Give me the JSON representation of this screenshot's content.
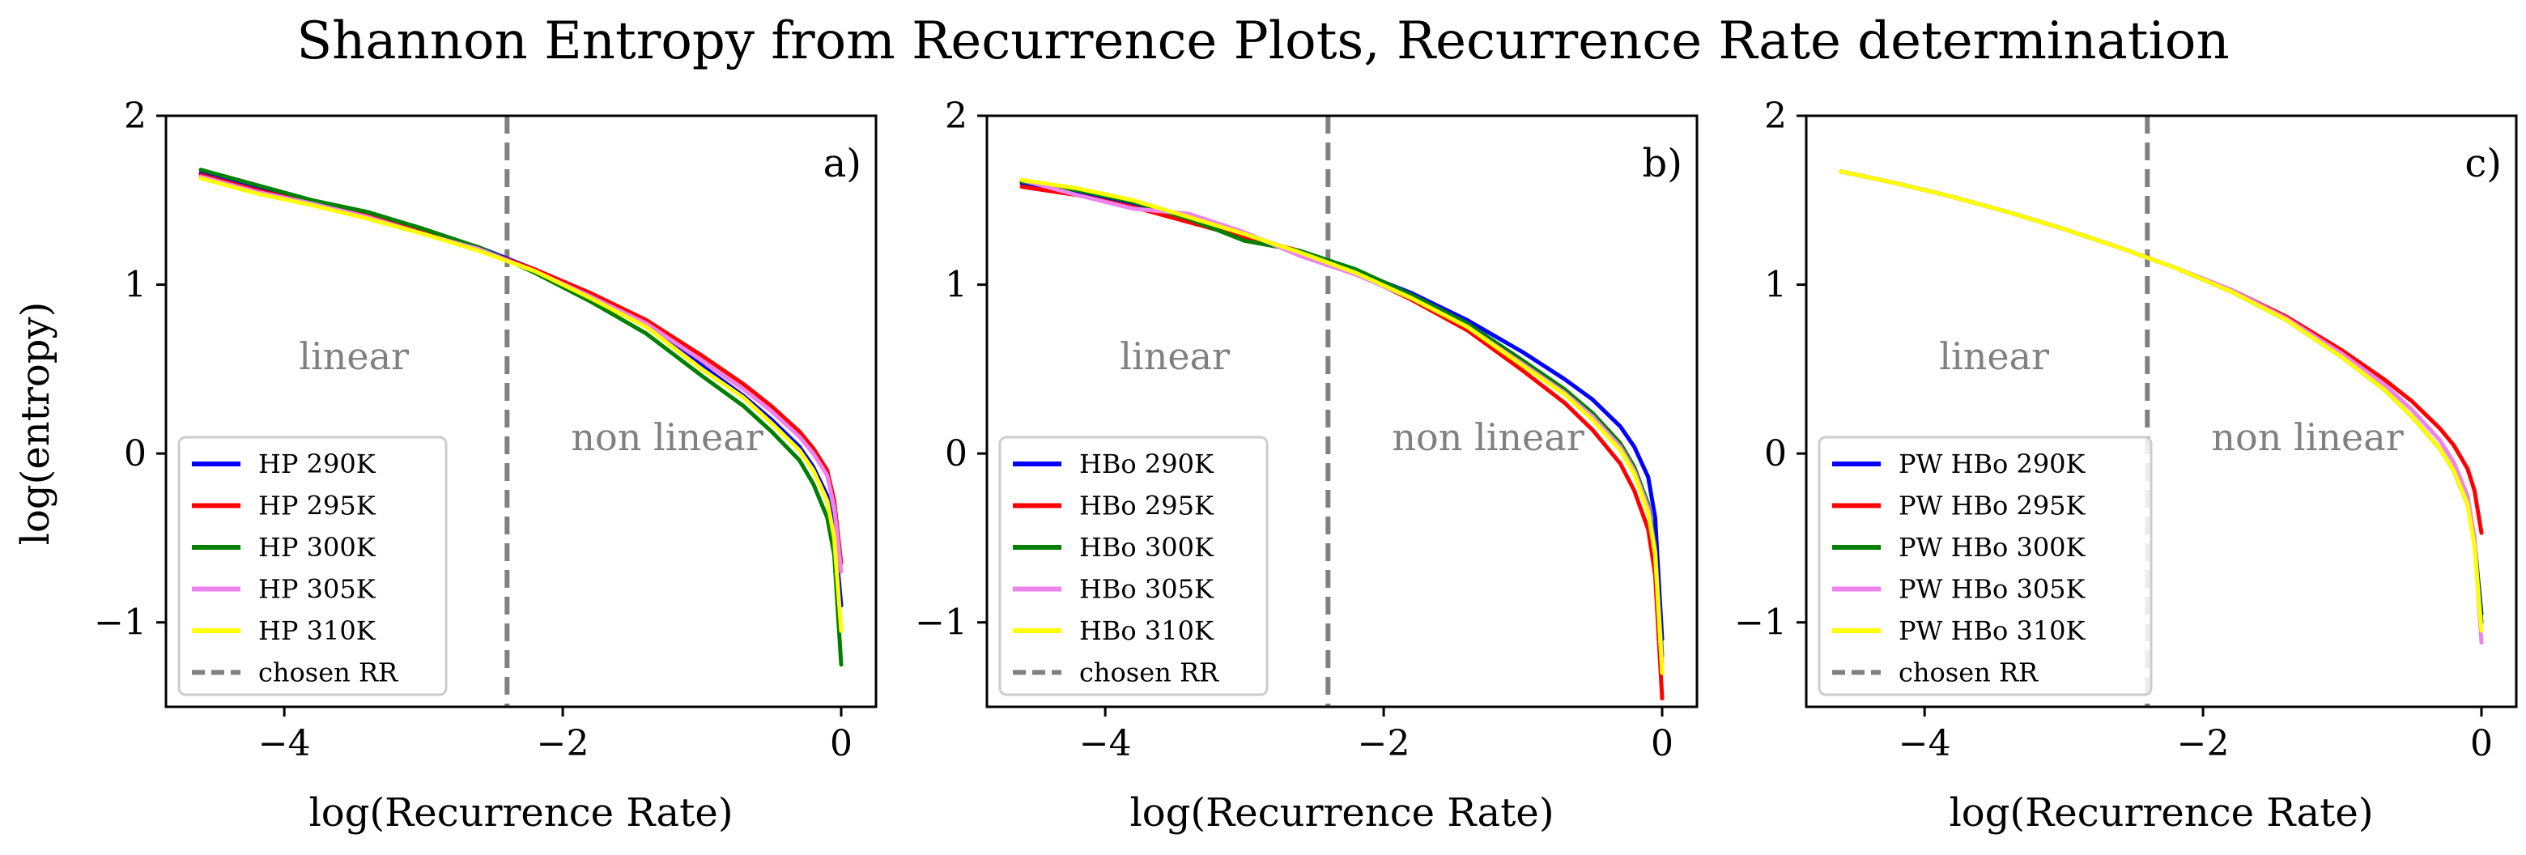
{
  "figure": {
    "title": "Shannon Entropy from Recurrence Plots, Recurrence Rate determination",
    "ylabel": "log(entropy)"
  },
  "chart_data": [
    {
      "type": "line",
      "panel_label": "a)",
      "xlabel": "log(Recurrence Rate)",
      "ylabel": "log(entropy)",
      "xlim": [
        -4.85,
        0.25
      ],
      "ylim": [
        -1.5,
        2.0
      ],
      "xticks": [
        -4,
        -2,
        0
      ],
      "yticks": [
        -1,
        0,
        1,
        2
      ],
      "chosen_rr": -2.4,
      "region_labels": {
        "linear": "linear",
        "nonlinear": "non linear"
      },
      "legend_loc": "lower left",
      "legend_chosen_label": "chosen RR",
      "series": [
        {
          "name": "HP 290K",
          "color": "#0000ff",
          "x": [
            -4.6,
            -4.2,
            -3.8,
            -3.4,
            -3.0,
            -2.6,
            -2.2,
            -1.8,
            -1.4,
            -1.0,
            -0.7,
            -0.5,
            -0.3,
            -0.2,
            -0.1,
            -0.05,
            0.0
          ],
          "y": [
            1.66,
            1.57,
            1.49,
            1.41,
            1.32,
            1.22,
            1.09,
            0.93,
            0.76,
            0.52,
            0.34,
            0.2,
            0.04,
            -0.08,
            -0.25,
            -0.45,
            -0.9
          ]
        },
        {
          "name": "HP 295K",
          "color": "#ff0000",
          "x": [
            -4.6,
            -4.2,
            -3.8,
            -3.4,
            -3.0,
            -2.6,
            -2.2,
            -1.8,
            -1.4,
            -1.0,
            -0.7,
            -0.5,
            -0.3,
            -0.2,
            -0.1,
            -0.05,
            0.0
          ],
          "y": [
            1.65,
            1.56,
            1.48,
            1.41,
            1.31,
            1.21,
            1.09,
            0.95,
            0.79,
            0.58,
            0.41,
            0.28,
            0.13,
            0.03,
            -0.1,
            -0.28,
            -0.65
          ]
        },
        {
          "name": "HP 300K",
          "color": "#008000",
          "x": [
            -4.6,
            -4.2,
            -3.8,
            -3.4,
            -3.0,
            -2.6,
            -2.2,
            -1.8,
            -1.4,
            -1.0,
            -0.7,
            -0.5,
            -0.3,
            -0.2,
            -0.1,
            -0.05,
            0.0
          ],
          "y": [
            1.68,
            1.59,
            1.5,
            1.43,
            1.33,
            1.22,
            1.07,
            0.9,
            0.71,
            0.46,
            0.28,
            0.13,
            -0.04,
            -0.18,
            -0.38,
            -0.6,
            -1.25
          ]
        },
        {
          "name": "HP 305K",
          "color": "#ee82ee",
          "x": [
            -4.6,
            -4.2,
            -3.8,
            -3.4,
            -3.0,
            -2.6,
            -2.2,
            -1.8,
            -1.4,
            -1.0,
            -0.7,
            -0.5,
            -0.3,
            -0.2,
            -0.1,
            -0.05,
            0.0
          ],
          "y": [
            1.64,
            1.55,
            1.48,
            1.4,
            1.3,
            1.21,
            1.08,
            0.93,
            0.77,
            0.55,
            0.38,
            0.25,
            0.1,
            0.0,
            -0.13,
            -0.32,
            -0.7
          ]
        },
        {
          "name": "HP 310K",
          "color": "#ffff00",
          "x": [
            -4.6,
            -4.2,
            -3.8,
            -3.4,
            -3.0,
            -2.6,
            -2.2,
            -1.8,
            -1.4,
            -1.0,
            -0.7,
            -0.5,
            -0.3,
            -0.2,
            -0.1,
            -0.05,
            0.0
          ],
          "y": [
            1.63,
            1.54,
            1.47,
            1.39,
            1.3,
            1.2,
            1.08,
            0.92,
            0.75,
            0.5,
            0.33,
            0.18,
            0.02,
            -0.1,
            -0.28,
            -0.5,
            -1.05
          ]
        }
      ]
    },
    {
      "type": "line",
      "panel_label": "b)",
      "xlabel": "log(Recurrence Rate)",
      "ylabel": "",
      "xlim": [
        -4.85,
        0.25
      ],
      "ylim": [
        -1.5,
        2.0
      ],
      "xticks": [
        -4,
        -2,
        0
      ],
      "yticks": [
        -1,
        0,
        1,
        2
      ],
      "chosen_rr": -2.4,
      "region_labels": {
        "linear": "linear",
        "nonlinear": "non linear"
      },
      "legend_loc": "lower left",
      "legend_chosen_label": "chosen RR",
      "series": [
        {
          "name": "HBo 290K",
          "color": "#0000ff",
          "x": [
            -4.6,
            -4.2,
            -3.8,
            -3.4,
            -3.0,
            -2.6,
            -2.2,
            -1.8,
            -1.4,
            -1.0,
            -0.7,
            -0.5,
            -0.3,
            -0.2,
            -0.1,
            -0.05,
            0.0
          ],
          "y": [
            1.6,
            1.55,
            1.47,
            1.4,
            1.3,
            1.19,
            1.08,
            0.95,
            0.79,
            0.6,
            0.44,
            0.32,
            0.16,
            0.04,
            -0.14,
            -0.38,
            -1.1
          ]
        },
        {
          "name": "HBo 295K",
          "color": "#ff0000",
          "x": [
            -4.6,
            -4.2,
            -3.8,
            -3.4,
            -3.0,
            -2.6,
            -2.2,
            -1.8,
            -1.4,
            -1.0,
            -0.7,
            -0.5,
            -0.3,
            -0.2,
            -0.1,
            -0.05,
            0.0
          ],
          "y": [
            1.58,
            1.53,
            1.46,
            1.37,
            1.28,
            1.2,
            1.07,
            0.91,
            0.73,
            0.49,
            0.3,
            0.14,
            -0.06,
            -0.22,
            -0.45,
            -0.72,
            -1.45
          ]
        },
        {
          "name": "HBo 300K",
          "color": "#008000",
          "x": [
            -4.6,
            -4.2,
            -3.8,
            -3.4,
            -3.0,
            -2.6,
            -2.2,
            -1.8,
            -1.4,
            -1.0,
            -0.7,
            -0.5,
            -0.3,
            -0.2,
            -0.1,
            -0.05,
            0.0
          ],
          "y": [
            1.61,
            1.56,
            1.49,
            1.39,
            1.26,
            1.2,
            1.09,
            0.94,
            0.77,
            0.55,
            0.38,
            0.24,
            0.06,
            -0.08,
            -0.3,
            -0.55,
            -1.2
          ]
        },
        {
          "name": "HBo 305K",
          "color": "#ee82ee",
          "x": [
            -4.6,
            -4.2,
            -3.8,
            -3.4,
            -3.0,
            -2.6,
            -2.2,
            -1.8,
            -1.4,
            -1.0,
            -0.7,
            -0.5,
            -0.3,
            -0.2,
            -0.1,
            -0.05,
            0.0
          ],
          "y": [
            1.62,
            1.53,
            1.45,
            1.42,
            1.31,
            1.17,
            1.06,
            0.92,
            0.75,
            0.53,
            0.36,
            0.22,
            0.04,
            -0.1,
            -0.32,
            -0.58,
            -1.25
          ]
        },
        {
          "name": "HBo 310K",
          "color": "#ffff00",
          "x": [
            -4.6,
            -4.2,
            -3.8,
            -3.4,
            -3.0,
            -2.6,
            -2.2,
            -1.8,
            -1.4,
            -1.0,
            -0.7,
            -0.5,
            -0.3,
            -0.2,
            -0.1,
            -0.05,
            0.0
          ],
          "y": [
            1.62,
            1.57,
            1.5,
            1.4,
            1.3,
            1.19,
            1.07,
            0.92,
            0.75,
            0.52,
            0.35,
            0.2,
            0.02,
            -0.12,
            -0.35,
            -0.6,
            -1.3
          ]
        }
      ]
    },
    {
      "type": "line",
      "panel_label": "c)",
      "xlabel": "log(Recurrence Rate)",
      "ylabel": "",
      "xlim": [
        -4.85,
        0.25
      ],
      "ylim": [
        -1.5,
        2.0
      ],
      "xticks": [
        -4,
        -2,
        0
      ],
      "yticks": [
        -1,
        0,
        1,
        2
      ],
      "chosen_rr": -2.4,
      "region_labels": {
        "linear": "linear",
        "nonlinear": "non linear"
      },
      "legend_loc": "lower left",
      "legend_chosen_label": "chosen RR",
      "series": [
        {
          "name": "PW HBo 290K",
          "color": "#0000ff",
          "x": [
            -4.6,
            -4.2,
            -3.8,
            -3.4,
            -3.0,
            -2.6,
            -2.2,
            -1.8,
            -1.4,
            -1.0,
            -0.7,
            -0.5,
            -0.3,
            -0.2,
            -0.1,
            -0.05,
            0.0
          ],
          "y": [
            1.67,
            1.6,
            1.52,
            1.43,
            1.33,
            1.22,
            1.1,
            0.96,
            0.79,
            0.57,
            0.38,
            0.22,
            0.03,
            -0.1,
            -0.3,
            -0.52,
            -0.95
          ]
        },
        {
          "name": "PW HBo 295K",
          "color": "#ff0000",
          "x": [
            -4.6,
            -4.2,
            -3.8,
            -3.4,
            -3.0,
            -2.6,
            -2.2,
            -1.8,
            -1.4,
            -1.0,
            -0.7,
            -0.5,
            -0.3,
            -0.2,
            -0.1,
            -0.05,
            0.0
          ],
          "y": [
            1.67,
            1.6,
            1.52,
            1.43,
            1.33,
            1.22,
            1.1,
            0.97,
            0.81,
            0.61,
            0.44,
            0.31,
            0.15,
            0.05,
            -0.09,
            -0.22,
            -0.47
          ]
        },
        {
          "name": "PW HBo 300K",
          "color": "#008000",
          "x": [
            -4.6,
            -4.2,
            -3.8,
            -3.4,
            -3.0,
            -2.6,
            -2.2,
            -1.8,
            -1.4,
            -1.0,
            -0.7,
            -0.5,
            -0.3,
            -0.2,
            -0.1,
            -0.05,
            0.0
          ],
          "y": [
            1.67,
            1.6,
            1.52,
            1.43,
            1.33,
            1.22,
            1.1,
            0.96,
            0.79,
            0.57,
            0.38,
            0.22,
            0.03,
            -0.1,
            -0.3,
            -0.52,
            -1.0
          ]
        },
        {
          "name": "PW HBo 305K",
          "color": "#ee82ee",
          "x": [
            -4.6,
            -4.2,
            -3.8,
            -3.4,
            -3.0,
            -2.6,
            -2.2,
            -1.8,
            -1.4,
            -1.0,
            -0.7,
            -0.5,
            -0.3,
            -0.2,
            -0.1,
            -0.05,
            0.0
          ],
          "y": [
            1.67,
            1.6,
            1.52,
            1.43,
            1.33,
            1.22,
            1.1,
            0.97,
            0.8,
            0.59,
            0.41,
            0.26,
            0.08,
            -0.05,
            -0.25,
            -0.5,
            -1.12
          ]
        },
        {
          "name": "PW HBo 310K",
          "color": "#ffff00",
          "x": [
            -4.6,
            -4.2,
            -3.8,
            -3.4,
            -3.0,
            -2.6,
            -2.2,
            -1.8,
            -1.4,
            -1.0,
            -0.7,
            -0.5,
            -0.3,
            -0.2,
            -0.1,
            -0.05,
            0.0
          ],
          "y": [
            1.67,
            1.6,
            1.52,
            1.43,
            1.33,
            1.22,
            1.1,
            0.96,
            0.79,
            0.57,
            0.38,
            0.22,
            0.03,
            -0.1,
            -0.3,
            -0.55,
            -1.05
          ]
        }
      ]
    }
  ]
}
